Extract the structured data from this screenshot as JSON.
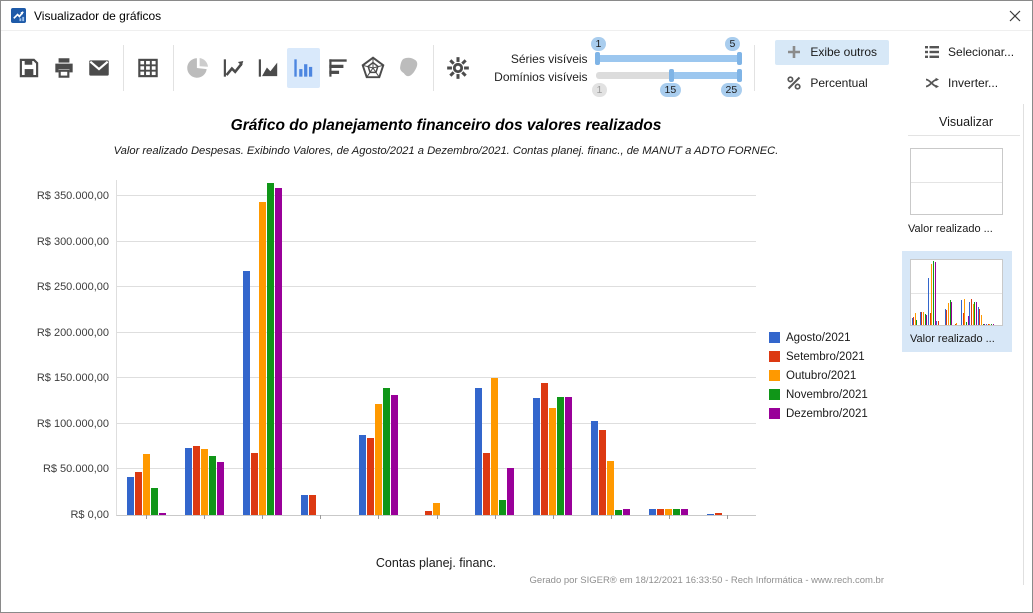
{
  "window": {
    "title": "Visualizador de gráficos"
  },
  "toolbar": {
    "icons": [
      "save-icon",
      "print-icon",
      "email-icon",
      "table-icon",
      "pie-chart-icon",
      "line-chart-icon",
      "area-chart-icon",
      "bar-chart-icon",
      "hbar-chart-icon",
      "radar-chart-icon",
      "map-icon",
      "settings-icon"
    ],
    "selected_icon": "bar-chart-icon",
    "disabled_icons": [
      "pie-chart-icon",
      "map-icon"
    ]
  },
  "controls": {
    "series_slider": {
      "label": "Séries visíveis",
      "min_label": "1",
      "max_label": "5"
    },
    "domains_slider": {
      "label": "Domínios visíveis",
      "start_label": "1",
      "from_label": "15",
      "to_label": "25"
    },
    "buttons": {
      "exibe_outros": "Exibe outros",
      "percentual": "Percentual",
      "selecionar": "Selecionar...",
      "inverter": "Inverter..."
    }
  },
  "chart_data": {
    "type": "bar",
    "title": "Gráfico do planejamento financeiro dos valores realizados",
    "subtitle": "Valor realizado Despesas. Exibindo Valores, de Agosto/2021 a Dezembro/2021. Contas planej. financ., de MANUT a ADTO FORNEC.",
    "xlabel": "Contas planej. financ.",
    "ylabel": "",
    "currency": "R$",
    "ylim": [
      0,
      368000
    ],
    "y_tick_step": 50000,
    "y_ticks": [
      "R$ 0,00",
      "R$ 50.000,00",
      "R$ 100.000,00",
      "R$ 150.000,00",
      "R$ 200.000,00",
      "R$ 250.000,00",
      "R$ 300.000,00",
      "R$ 350.000,00"
    ],
    "n_domains": 11,
    "grid": true,
    "legend_position": "right",
    "series": [
      {
        "name": "Agosto/2021",
        "color": "#3366CC",
        "values": [
          41500,
          73500,
          268000,
          22000,
          88000,
          0,
          139000,
          128000,
          103000,
          7000,
          1500
        ]
      },
      {
        "name": "Setembro/2021",
        "color": "#DC3912",
        "values": [
          47000,
          75500,
          68000,
          21500,
          85000,
          4000,
          68000,
          145000,
          93000,
          7000,
          2500
        ]
      },
      {
        "name": "Outubro/2021",
        "color": "#FF9900",
        "values": [
          67000,
          72000,
          344000,
          0,
          122000,
          13500,
          150000,
          117500,
          59500,
          7000,
          0
        ]
      },
      {
        "name": "Novembro/2021",
        "color": "#109618",
        "values": [
          30000,
          65000,
          365000,
          0,
          140000,
          0,
          17000,
          130000,
          5000,
          7000,
          0
        ]
      },
      {
        "name": "Dezembro/2021",
        "color": "#990099",
        "values": [
          2000,
          58000,
          359000,
          0,
          132000,
          0,
          51500,
          130000,
          6500,
          7000,
          0
        ]
      }
    ]
  },
  "footer": {
    "generated": "Gerado por SIGER® em 18/12/2021 16:33:50 - Rech Informática - www.rech.com.br"
  },
  "sidebar": {
    "title": "Visualizar",
    "items": [
      {
        "label": "Valor realizado ...",
        "selected": false
      },
      {
        "label": "Valor realizado ...",
        "selected": true
      }
    ]
  },
  "colors": {
    "selection_bg": "#D7E8F7",
    "toolbar_selected_bg": "#D9E9FB",
    "slider_blue": "#9CC7EF"
  }
}
